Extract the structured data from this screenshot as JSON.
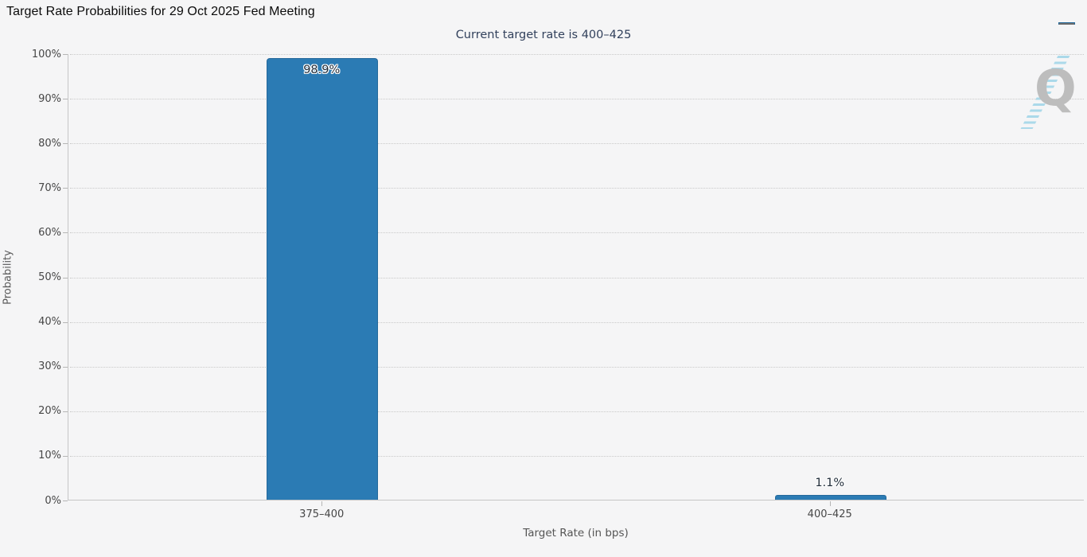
{
  "header": {
    "title": "Target Rate Probabilities for 29 Oct 2025 Fed Meeting",
    "menu_icon": "hamburger-icon"
  },
  "chart_data": {
    "type": "bar",
    "title": "Target Rate Probabilities for 29 Oct 2025 Fed Meeting",
    "subtitle": "Current target rate is 400–425",
    "categories": [
      "375–400",
      "400–425"
    ],
    "values": [
      98.9,
      1.1
    ],
    "value_labels": [
      "98.9%",
      "1.1%"
    ],
    "xlabel": "Target Rate (in bps)",
    "ylabel": "Probability",
    "ylim": [
      0,
      100
    ],
    "ytick_step": 10,
    "ytick_labels": [
      "0%",
      "10%",
      "20%",
      "30%",
      "40%",
      "50%",
      "60%",
      "70%",
      "80%",
      "90%",
      "100%"
    ],
    "grid": "horizontal-dotted",
    "legend_position": "none",
    "bar_color": "#2b7bb4",
    "bar_border_color": "#25699b"
  },
  "watermark": {
    "letter": "Q"
  }
}
